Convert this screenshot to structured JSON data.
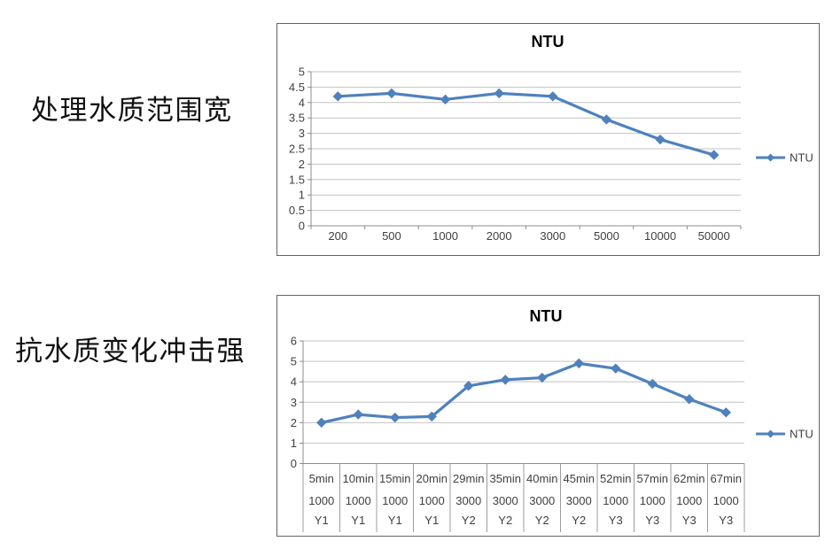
{
  "document": {
    "background": "#ffffff"
  },
  "sections": [
    {
      "label": "处理水质范围宽"
    },
    {
      "label": "抗水质变化冲击强"
    }
  ],
  "colors": {
    "series": "#4f81bd",
    "grid": "#c3c3c3",
    "axis": "#8c8c8c",
    "table_line": "#9c9c9c",
    "text": "#3f3f3f",
    "title": "#000000",
    "chart_border": "#636363"
  },
  "chart_data": [
    {
      "type": "line",
      "title": "NTU",
      "legend": [
        "NTU"
      ],
      "legend_position": "right",
      "marker": "diamond",
      "grid": true,
      "categories": [
        "200",
        "500",
        "1000",
        "2000",
        "3000",
        "5000",
        "10000",
        "50000"
      ],
      "series": [
        {
          "name": "NTU",
          "values": [
            4.2,
            4.3,
            4.1,
            4.3,
            4.2,
            3.45,
            2.8,
            2.3
          ]
        }
      ],
      "xlabel": "",
      "ylabel": "",
      "ylim": [
        0,
        5
      ],
      "ytick_step": 0.5
    },
    {
      "type": "line",
      "title": "NTU",
      "legend": [
        "NTU"
      ],
      "legend_position": "right",
      "marker": "diamond",
      "grid": true,
      "categories": [
        [
          "5min",
          "1000",
          "Y1"
        ],
        [
          "10min",
          "1000",
          "Y1"
        ],
        [
          "15min",
          "1000",
          "Y1"
        ],
        [
          "20min",
          "1000",
          "Y1"
        ],
        [
          "29min",
          "3000",
          "Y2"
        ],
        [
          "35min",
          "3000",
          "Y2"
        ],
        [
          "40min",
          "3000",
          "Y2"
        ],
        [
          "45min",
          "3000",
          "Y2"
        ],
        [
          "52min",
          "1000",
          "Y3"
        ],
        [
          "57min",
          "1000",
          "Y3"
        ],
        [
          "62min",
          "1000",
          "Y3"
        ],
        [
          "67min",
          "1000",
          "Y3"
        ]
      ],
      "series": [
        {
          "name": "NTU",
          "values": [
            2.0,
            2.4,
            2.25,
            2.3,
            3.8,
            4.1,
            4.2,
            4.9,
            4.65,
            3.9,
            3.15,
            2.5
          ]
        }
      ],
      "xlabel": "",
      "ylabel": "",
      "ylim": [
        0,
        6
      ],
      "ytick_step": 1
    }
  ]
}
